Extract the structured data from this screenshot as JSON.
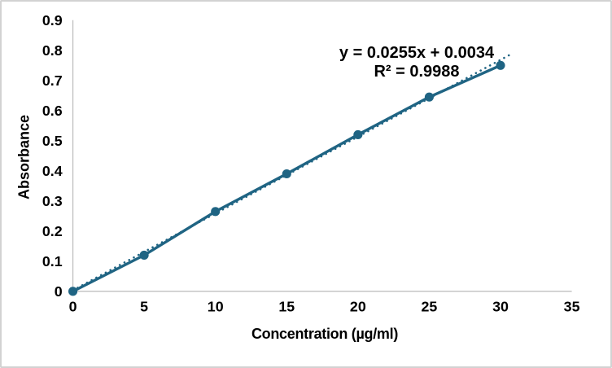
{
  "chart": {
    "equation_line1": "y = 0.0255x + 0.0034",
    "equation_line2": "R² = 0.9988",
    "x_axis_title": "Concentration (µg/ml)",
    "y_axis_title": "Absorbance"
  },
  "chart_data": {
    "type": "scatter",
    "title": "",
    "x": [
      0,
      5,
      10,
      15,
      20,
      25,
      30
    ],
    "series": [
      {
        "name": "Absorbance",
        "values": [
          0,
          0.12,
          0.265,
          0.39,
          0.52,
          0.645,
          0.75
        ]
      }
    ],
    "trendline": {
      "type": "linear",
      "slope": 0.0255,
      "intercept": 0.0034,
      "equation_label": "y = 0.0255x + 0.0034",
      "r2_label": "R² = 0.9988",
      "line_style": "dotted",
      "x_range": [
        0,
        30.6
      ]
    },
    "xlabel": "Concentration (µg/ml)",
    "ylabel": "Absorbance",
    "xlim": [
      0,
      35
    ],
    "ylim": [
      0,
      0.9
    ],
    "x_tick_labels": [
      "0",
      "5",
      "10",
      "15",
      "20",
      "25",
      "30",
      "35"
    ],
    "y_tick_labels": [
      "0",
      "0.1",
      "0.2",
      "0.3",
      "0.4",
      "0.5",
      "0.6",
      "0.7",
      "0.8",
      "0.9"
    ],
    "grid": false,
    "legend": false,
    "colors": {
      "series": "#1f6483",
      "trendline": "#1f6483",
      "axis_line": "#bfbfbf",
      "text": "#000000",
      "background": "#ffffff",
      "border": "#d2d2d2"
    }
  }
}
